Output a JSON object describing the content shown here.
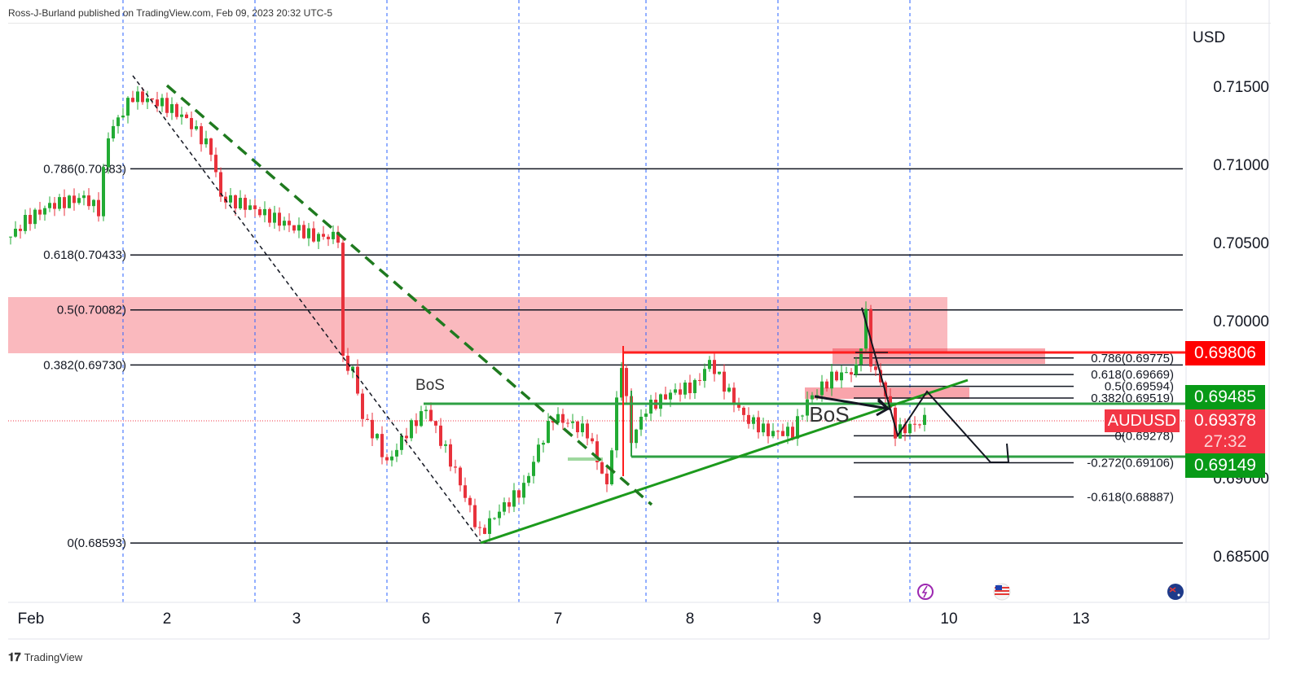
{
  "header": {
    "published": "Ross-J-Burland published on TradingView.com, Feb 09, 2023 20:32 UTC-5"
  },
  "footer": {
    "brand": "TradingView"
  },
  "chart_data": {
    "type": "candlestick",
    "symbol": "AUDUSD",
    "currency": "USD",
    "ylim": [
      0.683,
      0.718
    ],
    "y_ticks": [
      "0.71500",
      "0.71000",
      "0.70500",
      "0.70000",
      "0.69000",
      "0.68500"
    ],
    "y_tick_values": [
      0.715,
      0.71,
      0.705,
      0.7,
      0.69,
      0.685
    ],
    "x_ticks": [
      "Feb",
      "2",
      "3",
      "6",
      "7",
      "8",
      "9",
      "10",
      "13"
    ],
    "x_tick_bars": [
      5,
      32,
      58.5,
      85,
      112,
      139,
      165,
      192,
      219
    ],
    "session_lines_bars": [
      23,
      50,
      77,
      104,
      130,
      157,
      184
    ],
    "price_path": [
      [
        0,
        0.7055
      ],
      [
        3,
        0.7065
      ],
      [
        8,
        0.7075
      ],
      [
        15,
        0.708
      ],
      [
        18,
        0.7072
      ],
      [
        20,
        0.712
      ],
      [
        25,
        0.7145
      ],
      [
        31,
        0.714
      ],
      [
        36,
        0.713
      ],
      [
        41,
        0.711
      ],
      [
        43,
        0.708
      ],
      [
        48,
        0.7075
      ],
      [
        55,
        0.7065
      ],
      [
        62,
        0.7055
      ],
      [
        67,
        0.7055
      ],
      [
        68,
        0.6975
      ],
      [
        70,
        0.697
      ],
      [
        72,
        0.694
      ],
      [
        75,
        0.6925
      ],
      [
        77,
        0.691
      ],
      [
        81,
        0.693
      ],
      [
        85,
        0.6945
      ],
      [
        88,
        0.6925
      ],
      [
        91,
        0.6905
      ],
      [
        96,
        0.6865
      ],
      [
        100,
        0.688
      ],
      [
        105,
        0.6895
      ],
      [
        108,
        0.692
      ],
      [
        111,
        0.694
      ],
      [
        115,
        0.6935
      ],
      [
        118,
        0.693
      ],
      [
        122,
        0.6895
      ],
      [
        125,
        0.6975
      ],
      [
        127,
        0.6925
      ],
      [
        130,
        0.6945
      ],
      [
        135,
        0.6955
      ],
      [
        140,
        0.696
      ],
      [
        143,
        0.6975
      ],
      [
        146,
        0.696
      ],
      [
        150,
        0.694
      ],
      [
        155,
        0.693
      ],
      [
        160,
        0.693
      ],
      [
        163,
        0.695
      ],
      [
        168,
        0.6965
      ],
      [
        173,
        0.697
      ],
      [
        175,
        0.7005
      ],
      [
        176,
        0.6975
      ],
      [
        179,
        0.6955
      ],
      [
        181,
        0.693
      ],
      [
        185,
        0.6935
      ],
      [
        187,
        0.6938
      ]
    ],
    "colors": {
      "up": "#089981",
      "down": "#f23645",
      "up_candle": "#22ab34",
      "down_candle": "#e8323c"
    },
    "fib_left": [
      {
        "label": "0.786(0.70983)",
        "price": 0.70983
      },
      {
        "label": "0.618(0.70433)",
        "price": 0.70433
      },
      {
        "label": "0.5(0.70082)",
        "price": 0.70082
      },
      {
        "label": "0.382(0.69730)",
        "price": 0.6973
      },
      {
        "label": "0(0.68593)",
        "price": 0.68593
      }
    ],
    "fib_right": [
      {
        "label": "0.786(0.69775)",
        "price": 0.69775
      },
      {
        "label": "0.618(0.69669)",
        "price": 0.69669
      },
      {
        "label": "0.5(0.69594)",
        "price": 0.69594
      },
      {
        "label": "0.382(0.69519)",
        "price": 0.69519
      },
      {
        "label": "0(0.69278)",
        "price": 0.69278
      },
      {
        "label": "-0.272(0.69106)",
        "price": 0.69106
      },
      {
        "label": "-0.618(0.68887)",
        "price": 0.68887
      }
    ],
    "annotations": [
      {
        "text": "BoS"
      },
      {
        "text": "BoS"
      }
    ],
    "levels": {
      "resistance": 0.69806,
      "support_high": 0.69485,
      "support_low": 0.69149,
      "last": 0.69378
    }
  },
  "badges": {
    "red_level": "0.69806",
    "green_level_1": "0.69485",
    "symbol": "AUDUSD",
    "last_price": "0.69378",
    "countdown": "27:32",
    "green_level_2": "0.69149"
  }
}
